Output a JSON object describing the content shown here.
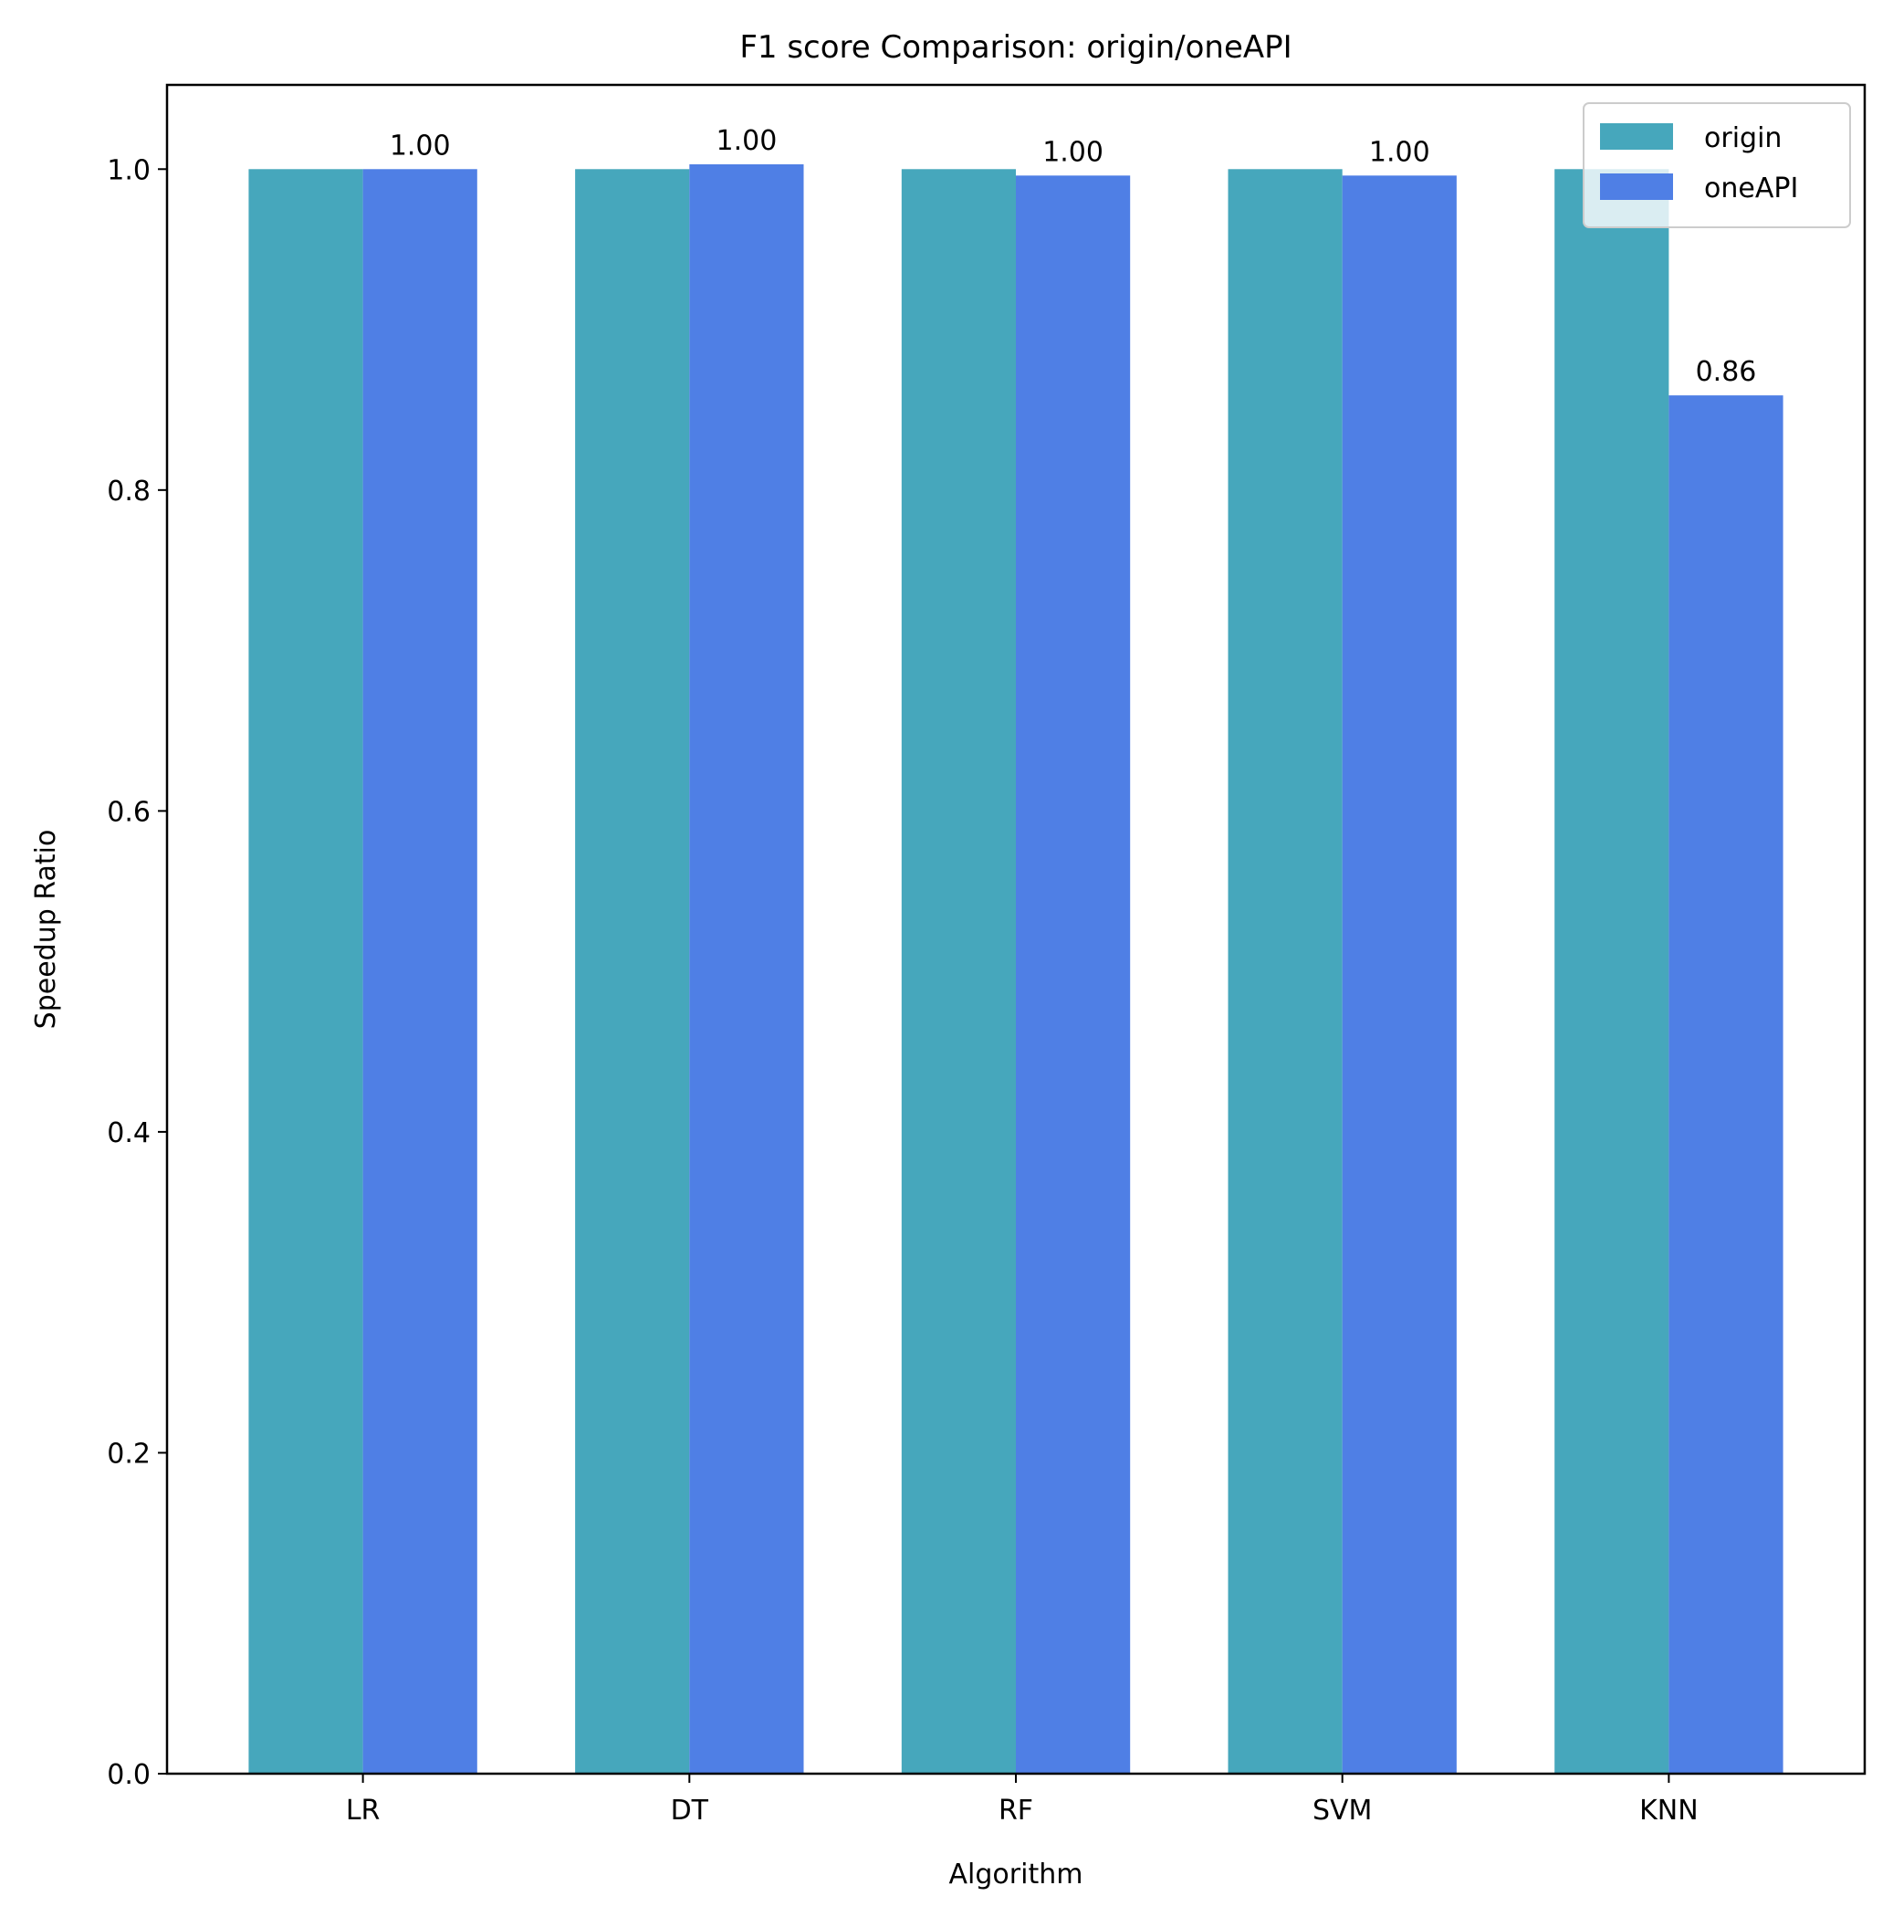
{
  "chart_data": {
    "type": "bar",
    "title": "F1 score Comparison: origin/oneAPI",
    "xlabel": "Algorithm",
    "ylabel": "Speedup Ratio",
    "categories": [
      "LR",
      "DT",
      "RF",
      "SVM",
      "KNN"
    ],
    "series": [
      {
        "name": "origin",
        "color": "#46A7BC",
        "values": [
          1.0,
          1.0,
          1.0,
          1.0,
          1.0
        ]
      },
      {
        "name": "oneAPI",
        "color": "#4F7FE5",
        "values": [
          1.0,
          1.003,
          0.996,
          0.996,
          0.859
        ],
        "labels": [
          "1.00",
          "1.00",
          "1.00",
          "1.00",
          "0.86"
        ]
      }
    ],
    "ylim": [
      0.0,
      1.0525
    ],
    "yticks": [
      "0.0",
      "0.2",
      "0.4",
      "0.6",
      "0.8",
      "1.0"
    ],
    "grid": false,
    "legend_position": "top-right"
  }
}
